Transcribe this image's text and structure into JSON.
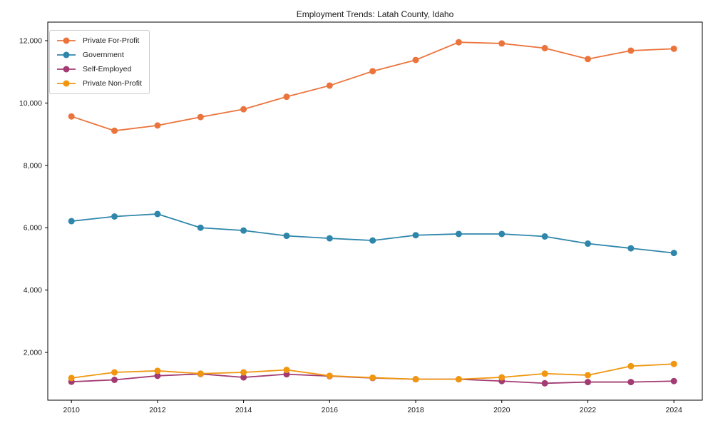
{
  "title": "Employment Trends: Latah County, Idaho",
  "chart_data": {
    "type": "line",
    "title": "Employment Trends: Latah County, Idaho",
    "xlabel": "",
    "ylabel": "",
    "x": [
      2010,
      2011,
      2012,
      2013,
      2014,
      2015,
      2016,
      2017,
      2018,
      2019,
      2020,
      2021,
      2022,
      2023,
      2024
    ],
    "series": [
      {
        "name": "Private For-Profit",
        "color": "#EB743C",
        "values": [
          9570,
          9110,
          9280,
          9550,
          9800,
          10200,
          10560,
          11020,
          11380,
          11950,
          11910,
          11760,
          11410,
          11680,
          11740
        ]
      },
      {
        "name": "Government",
        "color": "#2E86AB",
        "values": [
          6210,
          6360,
          6440,
          6000,
          5910,
          5740,
          5660,
          5590,
          5760,
          5800,
          5800,
          5720,
          5490,
          5340,
          5190
        ]
      },
      {
        "name": "Self-Employed",
        "color": "#A23B72",
        "values": [
          1060,
          1120,
          1250,
          1310,
          1200,
          1300,
          1240,
          1180,
          1140,
          1140,
          1080,
          1010,
          1050,
          1050,
          1080
        ]
      },
      {
        "name": "Private Non-Profit",
        "color": "#F0960F",
        "values": [
          1180,
          1360,
          1410,
          1320,
          1360,
          1440,
          1250,
          1190,
          1140,
          1140,
          1200,
          1320,
          1270,
          1560,
          1630
        ]
      }
    ],
    "xticks": [
      2010,
      2012,
      2014,
      2016,
      2018,
      2020,
      2022,
      2024
    ],
    "ytick_labels": [
      "2,000",
      "4,000",
      "6,000",
      "8,000",
      "10,000",
      "12,000"
    ],
    "yticks": [
      2000,
      4000,
      6000,
      8000,
      10000,
      12000
    ],
    "xlim": [
      2009.45,
      2024.66
    ],
    "ylim": [
      468,
      12595
    ],
    "grid": false,
    "legend_position": "upper-left",
    "axis_color": "#000000",
    "tick_label_color": "#1a1a1a",
    "marker": "circle",
    "marker_radius": 4.5,
    "line_width": 1.8
  }
}
